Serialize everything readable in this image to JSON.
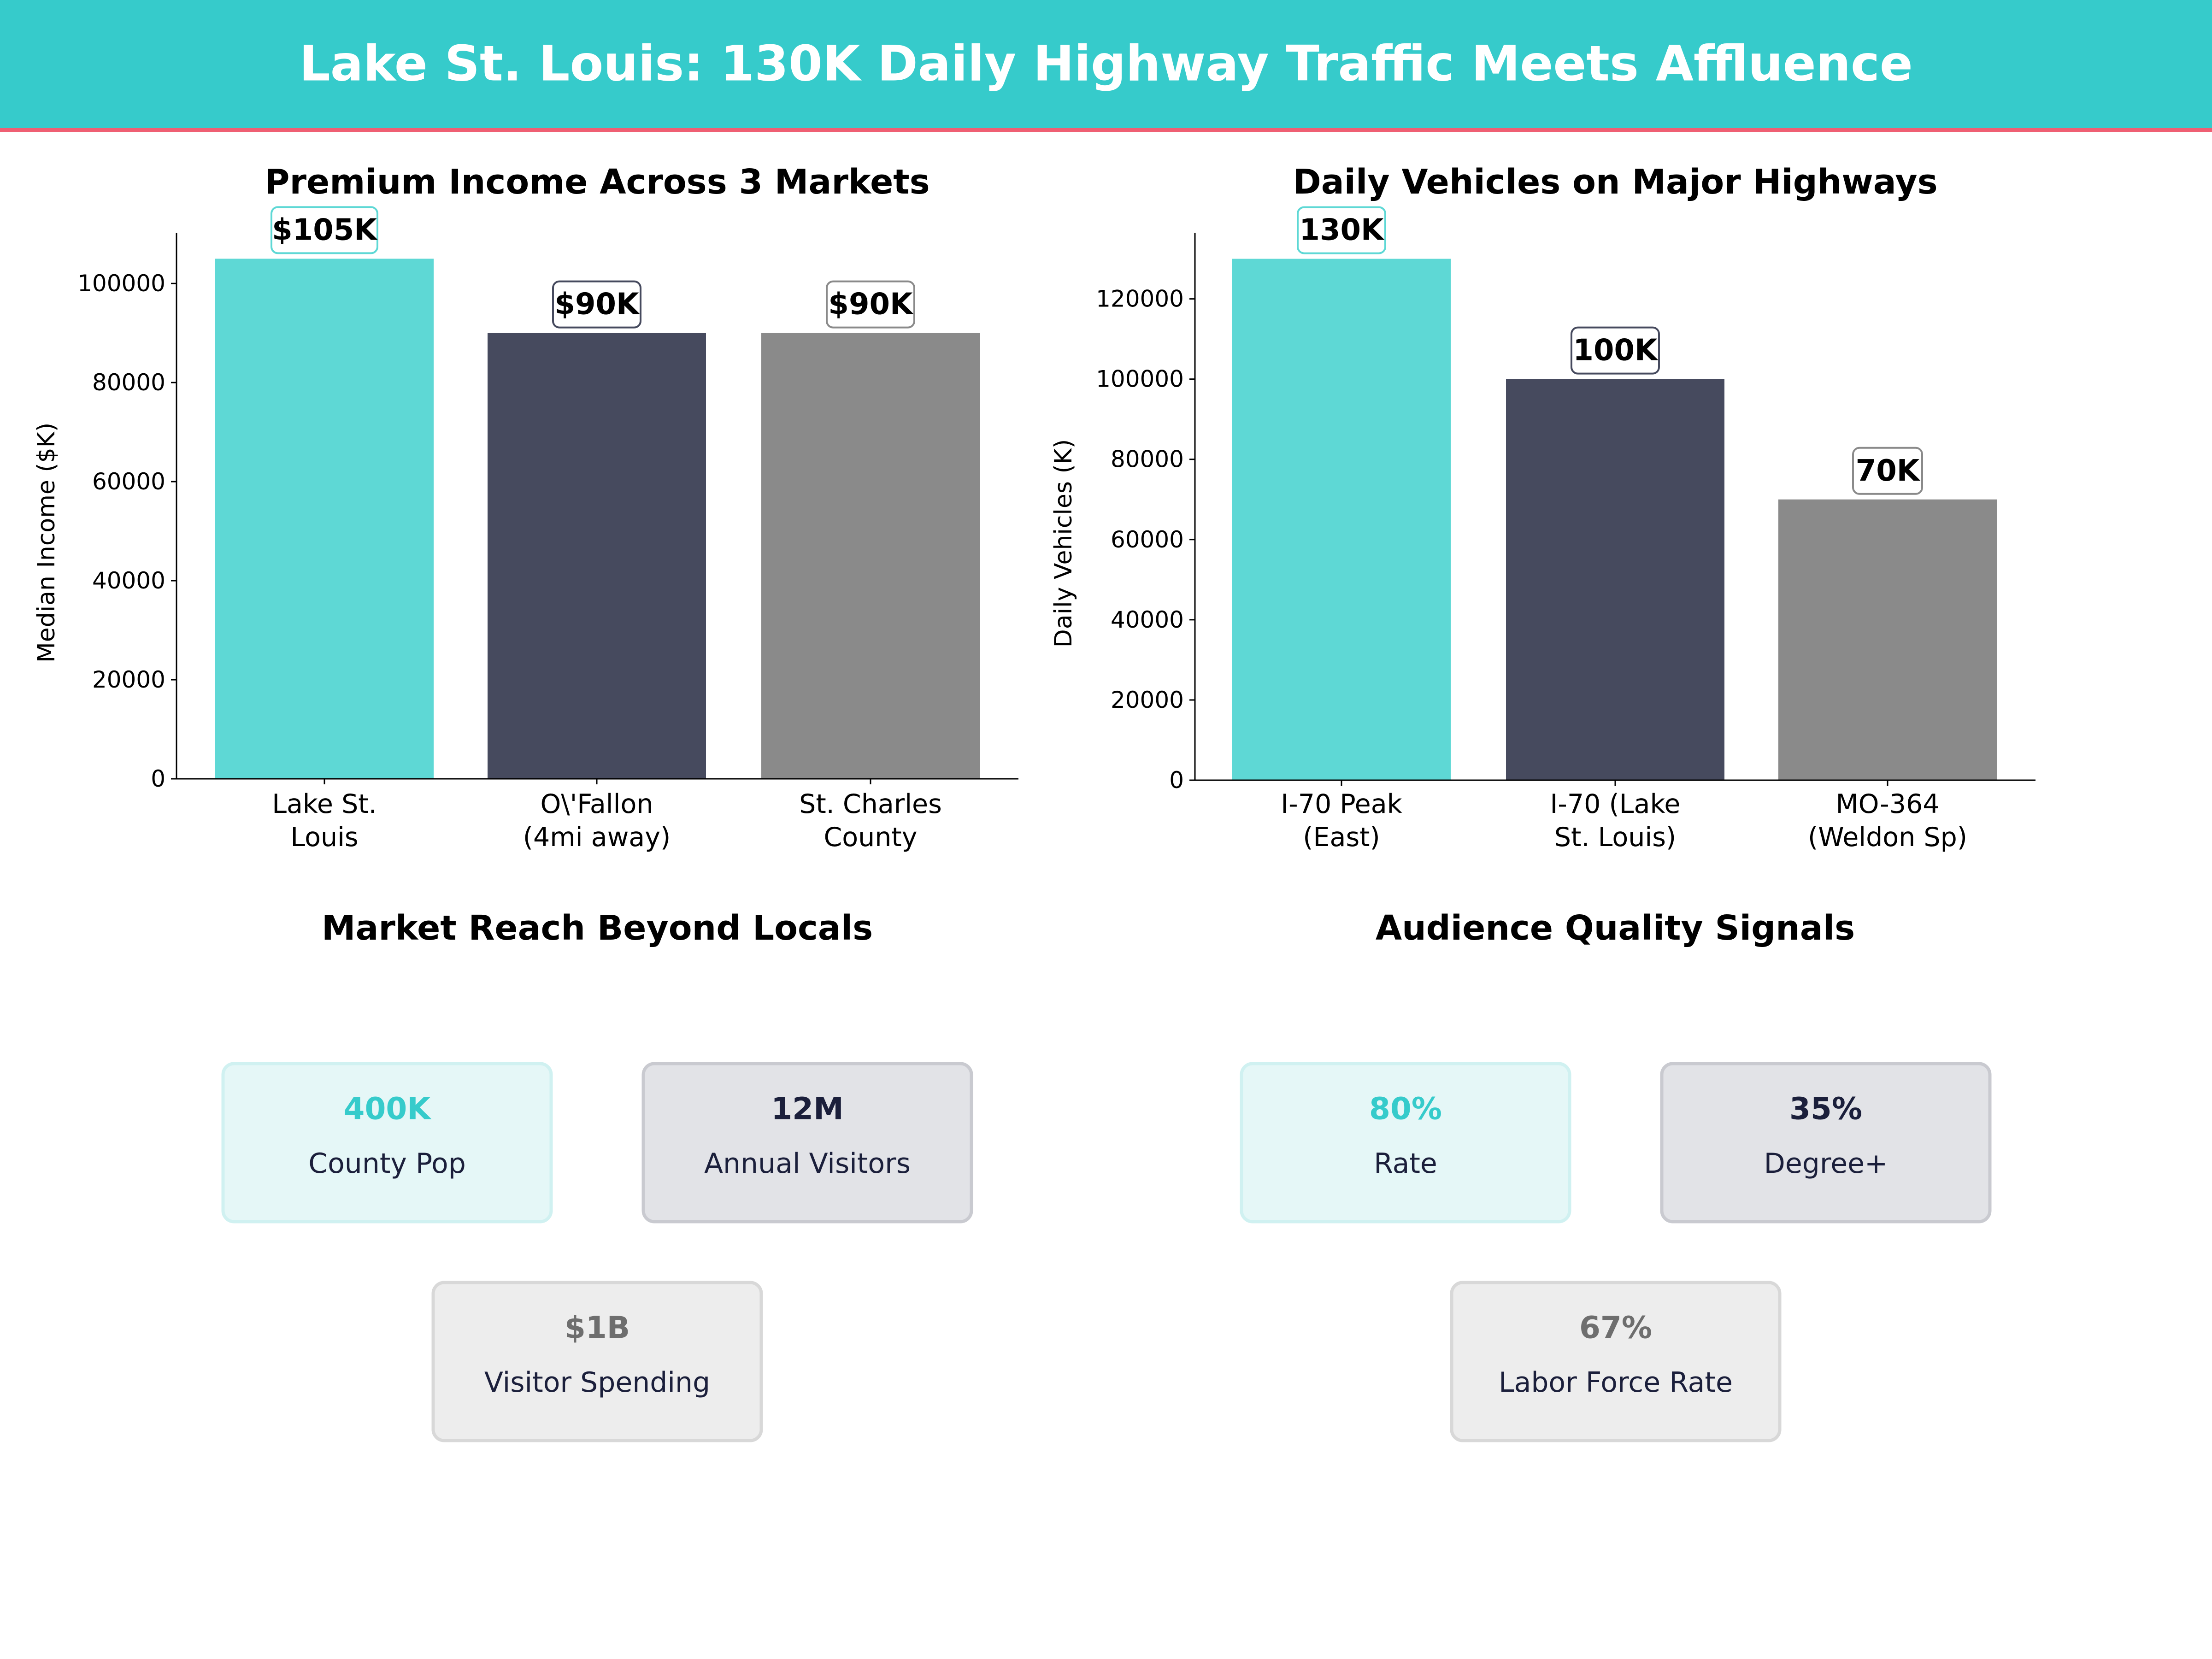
{
  "header": {
    "title": "Lake St. Louis: 130K Daily Highway Traffic Meets Affluence",
    "bg_color": "#36cbcb",
    "accent_line_color": "#ef5f73"
  },
  "chart_data": [
    {
      "type": "bar",
      "title": "Premium Income Across 3 Markets",
      "xlabel": "",
      "ylabel": "Median Income ($K)",
      "categories": [
        [
          "Lake St.",
          "Louis"
        ],
        [
          "O\\'Fallon",
          "(4mi away)"
        ],
        [
          "St. Charles",
          "County"
        ]
      ],
      "values": [
        105000,
        90000,
        90000
      ],
      "data_labels": [
        "$105K",
        "$90K",
        "$90K"
      ],
      "colors": [
        "#5ed8d5",
        "#464a5e",
        "#8a8a8a"
      ],
      "yticks": [
        0,
        20000,
        40000,
        60000,
        80000,
        100000
      ],
      "ylim": [
        0,
        110250
      ],
      "grid": false
    },
    {
      "type": "bar",
      "title": "Daily Vehicles on Major Highways",
      "xlabel": "",
      "ylabel": "Daily Vehicles (K)",
      "categories": [
        [
          "I-70 Peak",
          "(East)"
        ],
        [
          "I-70 (Lake",
          "St. Louis)"
        ],
        [
          "MO-364",
          "(Weldon Sp)"
        ]
      ],
      "values": [
        130000,
        100000,
        70000
      ],
      "data_labels": [
        "130K",
        "100K",
        "70K"
      ],
      "colors": [
        "#5ed8d5",
        "#464a5e",
        "#8a8a8a"
      ],
      "yticks": [
        0,
        20000,
        40000,
        60000,
        80000,
        100000,
        120000
      ],
      "ylim": [
        0,
        136500
      ],
      "grid": false
    }
  ],
  "panels": [
    {
      "title": "Market Reach Beyond Locals",
      "cards": [
        {
          "value": "400K",
          "label": "County Pop",
          "style": "teal"
        },
        {
          "value": "12M",
          "label": "Annual Visitors",
          "style": "dark"
        },
        {
          "value": "$1B",
          "label": "Visitor Spending",
          "style": "gray"
        }
      ]
    },
    {
      "title": "Audience Quality Signals",
      "cards": [
        {
          "value": "80%",
          "label": "Rate",
          "style": "teal"
        },
        {
          "value": "35%",
          "label": "Degree+",
          "style": "dark"
        },
        {
          "value": "67%",
          "label": "Labor Force Rate",
          "style": "gray"
        }
      ]
    }
  ]
}
